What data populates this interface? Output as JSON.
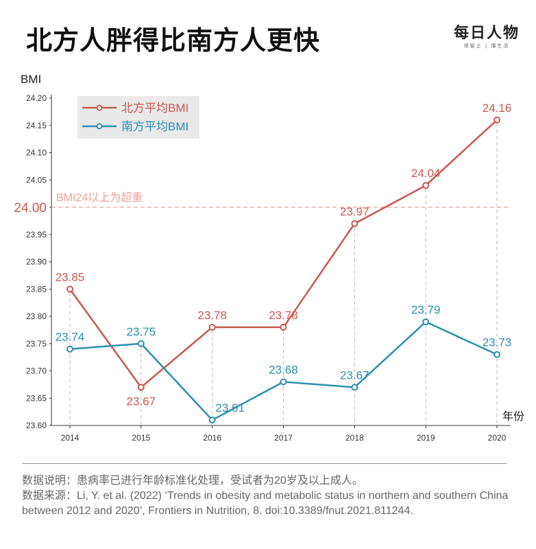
{
  "title": "北方人胖得比南方人更快",
  "logo": {
    "main": "每日人物",
    "sub": "领智止 | 懂生活"
  },
  "chart_data": {
    "type": "line",
    "title": "北方人胖得比南方人更快",
    "xlabel": "年份",
    "ylabel": "BMI",
    "x": [
      2014,
      2015,
      2016,
      2017,
      2018,
      2019,
      2020
    ],
    "ylim": [
      23.6,
      24.2
    ],
    "yticks": [
      "23.60",
      "23.65",
      "23.70",
      "23.75",
      "23.80",
      "23.85",
      "23.90",
      "23.95",
      "24.00",
      "24.05",
      "24.10",
      "24.15",
      "24.20"
    ],
    "series": [
      {
        "name": "北方平均BMI",
        "color": "#c9574e",
        "values": [
          23.85,
          23.67,
          23.78,
          23.78,
          23.97,
          24.04,
          24.16
        ],
        "labels": [
          "23.85",
          "23.67",
          "23.78",
          "23.78",
          "23.97",
          "24.04",
          "24.16"
        ]
      },
      {
        "name": "南方平均BMI",
        "color": "#2a8fb0",
        "values": [
          23.74,
          23.75,
          23.61,
          23.68,
          23.67,
          23.79,
          23.73
        ],
        "labels": [
          "23.74",
          "23.75",
          "23.61",
          "23.68",
          "23.67",
          "23.79",
          "23.73"
        ]
      }
    ],
    "reference_line": {
      "value": 24.0,
      "label": "BMI24以上为超重",
      "tick_label": "24.00",
      "color": "#e8a29c"
    },
    "legend": "top-left",
    "grid": false
  },
  "footer": {
    "note": "数据说明：患病率已进行年龄标准化处理，受试者为20岁及以上成人。",
    "source": "数据来源：Li, Y. et al. (2022) ‘Trends in obesity and metabolic status in northern and southern China between 2012 and 2020’, Frontiers in Nutrition, 8. doi:10.3389/fnut.2021.811244."
  }
}
